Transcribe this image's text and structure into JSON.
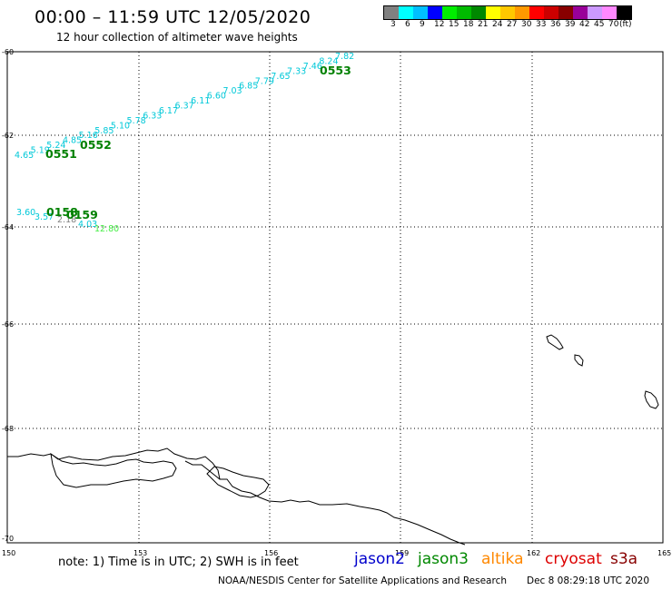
{
  "header": {
    "title": "00:00 – 11:59 UTC 12/05/2020",
    "subtitle": "12 hour collection of altimeter wave heights"
  },
  "color_scale": {
    "colors": [
      "#808080",
      "#00ffff",
      "#00bfff",
      "#0000ff",
      "#00ee00",
      "#00bb00",
      "#008800",
      "#ffff00",
      "#ffc800",
      "#ff9900",
      "#ff0000",
      "#cc0000",
      "#880000",
      "#990099",
      "#cc99ff",
      "#ff88ff",
      "#000000"
    ],
    "labels": [
      "3",
      "6",
      "9",
      "12",
      "15",
      "18",
      "21",
      "24",
      "27",
      "30",
      "33",
      "36",
      "39",
      "42",
      "45",
      "70",
      "(ft)"
    ]
  },
  "map": {
    "lon_ticks": [
      "150",
      "153",
      "156",
      "159",
      "162",
      "165"
    ],
    "lat_ticks": [
      "-60",
      "-62",
      "-64",
      "-66",
      "-68",
      "-70"
    ]
  },
  "tracks": [
    {
      "id": "0553",
      "color": "#008000",
      "points": [
        [
          "7.82",
          "#00c8d8"
        ],
        [
          "8.24",
          "#00c8d8"
        ],
        [
          "7.46",
          "#00c8d8"
        ],
        [
          "7.33",
          "#00c8d8"
        ],
        [
          "7.65",
          "#00c8d8"
        ],
        [
          "7.79",
          "#00c8d8"
        ],
        [
          "6.85",
          "#00c8d8"
        ],
        [
          "7.03",
          "#00c8d8"
        ],
        [
          "6.60",
          "#00c8d8"
        ],
        [
          "6.11",
          "#00c8d8"
        ],
        [
          "6.37",
          "#00c8d8"
        ],
        [
          "6.17",
          "#00c8d8"
        ],
        [
          "6.33",
          "#00c8d8"
        ],
        [
          "5.78",
          "#00c8d8"
        ],
        [
          "5.10",
          "#00c8d8"
        ],
        [
          "5.85",
          "#00c8d8"
        ],
        [
          "5.16",
          "#00c8d8"
        ],
        [
          "4.85",
          "#00c8d8"
        ],
        [
          "5.24",
          "#00c8d8"
        ],
        [
          "5.19",
          "#00c8d8"
        ],
        [
          "4.65",
          "#00c8d8"
        ]
      ]
    },
    {
      "id": "0552",
      "color": "#008000"
    },
    {
      "id": "0551",
      "color": "#008000"
    },
    {
      "id": "0158",
      "color": "#008000",
      "points": [
        [
          "3.60",
          "#00c8d8"
        ],
        [
          "3.57",
          "#00c8d8"
        ],
        [
          "2.18",
          "#808080"
        ],
        [
          "4.03",
          "#00c8d8"
        ],
        [
          "12.80",
          "#44ee44"
        ]
      ]
    },
    {
      "id": "0159",
      "color": "#008000"
    }
  ],
  "footer": {
    "note": "note: 1) Time is in UTC; 2) SWH is in feet",
    "missions": [
      {
        "name": "jason2",
        "color": "#0000cc"
      },
      {
        "name": "jason3",
        "color": "#008800"
      },
      {
        "name": "altika",
        "color": "#ff8800"
      },
      {
        "name": "cryosat",
        "color": "#dd0000"
      },
      {
        "name": "s3a",
        "color": "#880000"
      }
    ],
    "credit": "NOAA/NESDIS Center for Satellite Applications and Research",
    "timestamp": "Dec  8 08:29:18 UTC 2020"
  }
}
